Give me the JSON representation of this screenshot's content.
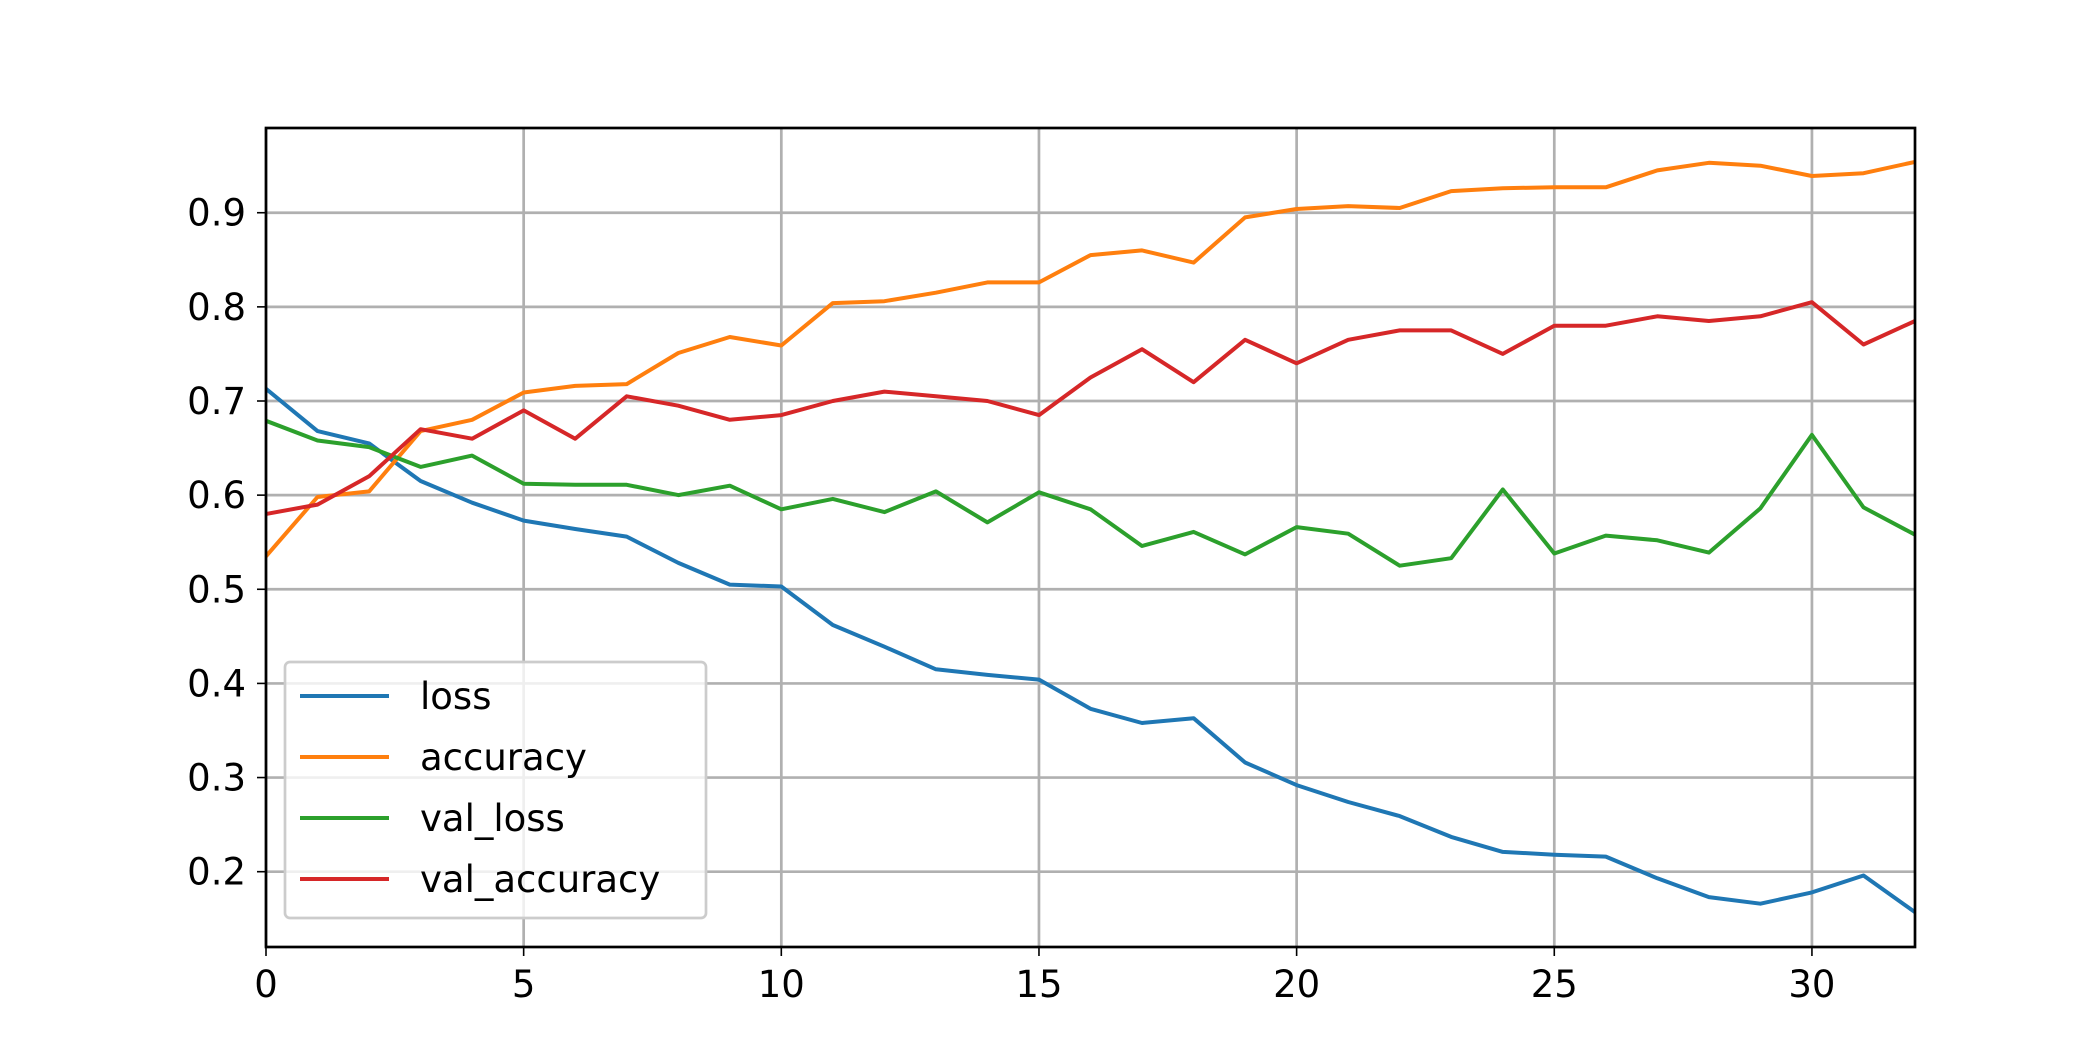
{
  "chart_data": {
    "type": "line",
    "title": "",
    "xlabel": "",
    "ylabel": "",
    "xlim": [
      0,
      32
    ],
    "ylim": [
      0.12,
      0.99
    ],
    "xticks": [
      0,
      5,
      10,
      15,
      20,
      25,
      30
    ],
    "xtick_labels": [
      "0",
      "5",
      "10",
      "15",
      "20",
      "25",
      "30"
    ],
    "yticks": [
      0.2,
      0.3,
      0.4,
      0.5,
      0.6,
      0.7,
      0.8,
      0.9
    ],
    "ytick_labels": [
      "0.2",
      "0.3",
      "0.4",
      "0.5",
      "0.6",
      "0.7",
      "0.8",
      "0.9"
    ],
    "grid": true,
    "legend_position": "lower-left",
    "x": [
      0,
      1,
      2,
      3,
      4,
      5,
      6,
      7,
      8,
      9,
      10,
      11,
      12,
      13,
      14,
      15,
      16,
      17,
      18,
      19,
      20,
      21,
      22,
      23,
      24,
      25,
      26,
      27,
      28,
      29,
      30,
      31,
      32
    ],
    "series": [
      {
        "name": "loss",
        "color": "#1f77b4",
        "values": [
          0.713,
          0.668,
          0.655,
          0.615,
          0.592,
          0.573,
          0.564,
          0.556,
          0.528,
          0.505,
          0.503,
          0.462,
          0.439,
          0.415,
          0.409,
          0.404,
          0.373,
          0.358,
          0.363,
          0.316,
          0.292,
          0.274,
          0.259,
          0.237,
          0.221,
          0.218,
          0.216,
          0.193,
          0.173,
          0.166,
          0.178,
          0.196,
          0.157
        ]
      },
      {
        "name": "accuracy",
        "color": "#ff7f0e",
        "values": [
          0.535,
          0.598,
          0.604,
          0.668,
          0.68,
          0.709,
          0.716,
          0.718,
          0.751,
          0.768,
          0.759,
          0.804,
          0.806,
          0.815,
          0.826,
          0.826,
          0.855,
          0.86,
          0.847,
          0.895,
          0.904,
          0.907,
          0.905,
          0.923,
          0.926,
          0.927,
          0.927,
          0.945,
          0.953,
          0.95,
          0.939,
          0.942,
          0.954
        ]
      },
      {
        "name": "val_loss",
        "color": "#2ca02c",
        "values": [
          0.679,
          0.658,
          0.651,
          0.63,
          0.642,
          0.612,
          0.611,
          0.611,
          0.6,
          0.61,
          0.585,
          0.596,
          0.582,
          0.604,
          0.571,
          0.603,
          0.585,
          0.546,
          0.561,
          0.537,
          0.566,
          0.559,
          0.525,
          0.533,
          0.606,
          0.538,
          0.557,
          0.552,
          0.539,
          0.586,
          0.664,
          0.587,
          0.558
        ]
      },
      {
        "name": "val_accuracy",
        "color": "#d62728",
        "values": [
          0.58,
          0.59,
          0.62,
          0.67,
          0.66,
          0.69,
          0.66,
          0.705,
          0.695,
          0.68,
          0.685,
          0.7,
          0.71,
          0.705,
          0.7,
          0.685,
          0.725,
          0.755,
          0.72,
          0.765,
          0.74,
          0.765,
          0.775,
          0.775,
          0.75,
          0.78,
          0.78,
          0.79,
          0.785,
          0.79,
          0.805,
          0.76,
          0.785
        ]
      }
    ]
  }
}
